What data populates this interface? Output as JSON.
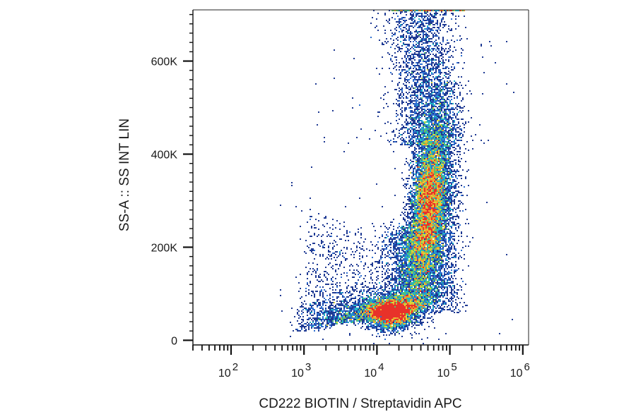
{
  "chart_data": {
    "type": "scatter",
    "subtype": "flow-cytometry-density-dot-plot",
    "xlabel": "CD222 BIOTIN / Streptavidin APC",
    "ylabel": "SS-A :: SS INT LIN",
    "x_scale": "log",
    "y_scale": "linear",
    "xlim": [
      30,
      1200000
    ],
    "ylim": [
      -10000,
      710000
    ],
    "grid": false,
    "legend": "none",
    "x_ticks": [
      {
        "base": "10",
        "exp": "2",
        "value": 100
      },
      {
        "base": "10",
        "exp": "3",
        "value": 1000
      },
      {
        "base": "10",
        "exp": "4",
        "value": 10000
      },
      {
        "base": "10",
        "exp": "5",
        "value": 100000
      },
      {
        "base": "10",
        "exp": "6",
        "value": 1000000
      }
    ],
    "y_ticks": [
      {
        "label": "0",
        "value": 0
      },
      {
        "label": "200K",
        "value": 200000
      },
      {
        "label": "400K",
        "value": 400000
      },
      {
        "label": "600K",
        "value": 600000
      }
    ],
    "density_colors": [
      "#1f3a93",
      "#2e6fd0",
      "#20b4c8",
      "#5cc26b",
      "#d8d83a",
      "#f0a030",
      "#e8322a"
    ],
    "populations": [
      {
        "label": "",
        "x_center": 15000,
        "y_center": 60000,
        "peak_density": "high"
      },
      {
        "label": "",
        "x_center": 55000,
        "y_center": 300000,
        "peak_density": "medium-high"
      }
    ]
  }
}
